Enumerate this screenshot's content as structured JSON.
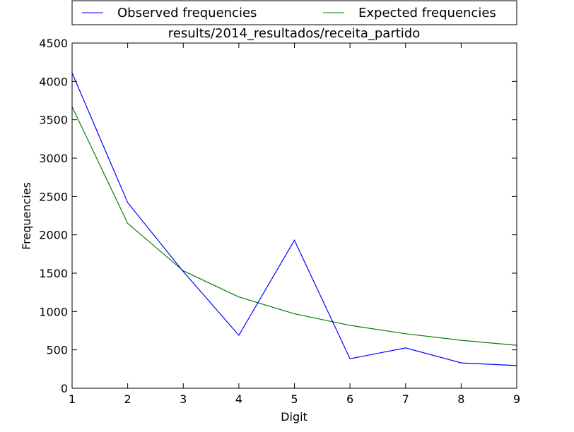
{
  "chart_data": {
    "type": "line",
    "title": "results/2014_resultados/receita_partido",
    "xlabel": "Digit",
    "ylabel": "Frequencies",
    "x": [
      1,
      2,
      3,
      4,
      5,
      6,
      7,
      8,
      9
    ],
    "xlim": [
      1,
      9
    ],
    "ylim": [
      0,
      4500
    ],
    "xticks": [
      1,
      2,
      3,
      4,
      5,
      6,
      7,
      8,
      9
    ],
    "yticks": [
      0,
      500,
      1000,
      1500,
      2000,
      2500,
      3000,
      3500,
      4000,
      4500
    ],
    "grid": false,
    "legend_placement": "top-outside",
    "series": [
      {
        "name": "Observed frequencies",
        "color": "#0000ff",
        "values": [
          4110,
          2420,
          1520,
          690,
          1930,
          385,
          525,
          330,
          295
        ]
      },
      {
        "name": "Expected frequencies",
        "color": "#008000",
        "values": [
          3670,
          2150,
          1530,
          1190,
          970,
          820,
          710,
          625,
          560
        ]
      }
    ]
  }
}
